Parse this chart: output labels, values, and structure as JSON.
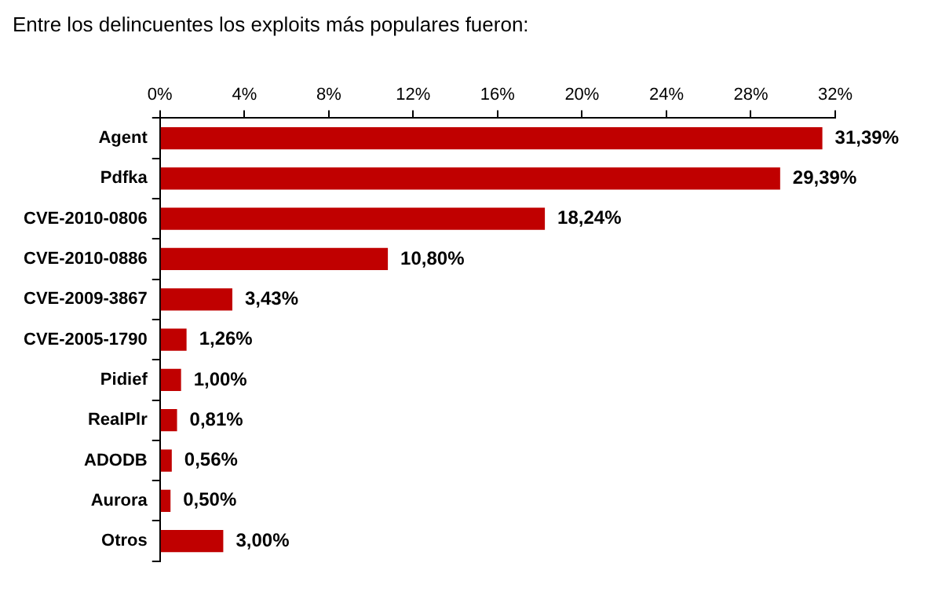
{
  "chart_data": {
    "type": "bar",
    "orientation": "horizontal",
    "title": "Entre los delincuentes los exploits más populares fueron:",
    "categories": [
      "Agent",
      "Pdfka",
      "CVE-2010-0806",
      "CVE-2010-0886",
      "CVE-2009-3867",
      "CVE-2005-1790",
      "Pidief",
      "RealPlr",
      "ADODB",
      "Aurora",
      "Otros"
    ],
    "values": [
      31.39,
      29.39,
      18.24,
      10.8,
      3.43,
      1.26,
      1.0,
      0.81,
      0.56,
      0.5,
      3.0
    ],
    "value_labels": [
      "31,39%",
      "29,39%",
      "18,24%",
      "10,80%",
      "3,43%",
      "1,26%",
      "1,00%",
      "0,81%",
      "0,56%",
      "0,50%",
      "3,00%"
    ],
    "color": "#c00000",
    "xlim": [
      0,
      32
    ],
    "xticks": [
      {
        "value": 0,
        "label": "0%"
      },
      {
        "value": 4,
        "label": "4%"
      },
      {
        "value": 8,
        "label": "8%"
      },
      {
        "value": 12,
        "label": "12%"
      },
      {
        "value": 16,
        "label": "16%"
      },
      {
        "value": 20,
        "label": "20%"
      },
      {
        "value": 24,
        "label": "24%"
      },
      {
        "value": 28,
        "label": "28%"
      },
      {
        "value": 32,
        "label": "32%"
      }
    ],
    "grid": false,
    "legend": false
  }
}
